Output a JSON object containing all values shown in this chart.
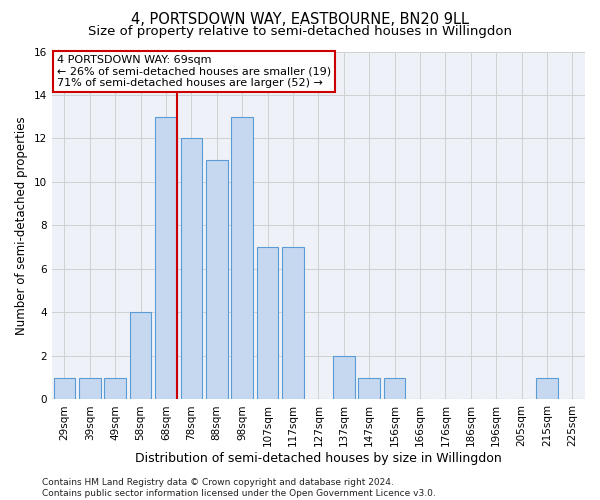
{
  "title": "4, PORTSDOWN WAY, EASTBOURNE, BN20 9LL",
  "subtitle": "Size of property relative to semi-detached houses in Willingdon",
  "xlabel": "Distribution of semi-detached houses by size in Willingdon",
  "ylabel": "Number of semi-detached properties",
  "categories": [
    "29sqm",
    "39sqm",
    "49sqm",
    "58sqm",
    "68sqm",
    "78sqm",
    "88sqm",
    "98sqm",
    "107sqm",
    "117sqm",
    "127sqm",
    "137sqm",
    "147sqm",
    "156sqm",
    "166sqm",
    "176sqm",
    "186sqm",
    "196sqm",
    "205sqm",
    "215sqm",
    "225sqm"
  ],
  "values": [
    1,
    1,
    1,
    4,
    13,
    12,
    11,
    13,
    7,
    7,
    0,
    2,
    1,
    1,
    0,
    0,
    0,
    0,
    0,
    1,
    0
  ],
  "bar_color": "#c5d8f0",
  "bar_edge_color": "#5b9bd5",
  "vline_bar_index": 4,
  "vline_color": "#cc0000",
  "annotation_line1": "4 PORTSDOWN WAY: 69sqm",
  "annotation_line2": "← 26% of semi-detached houses are smaller (19)",
  "annotation_line3": "71% of semi-detached houses are larger (52) →",
  "annotation_box_color": "#ffffff",
  "annotation_box_edge_color": "#cc0000",
  "ylim": [
    0,
    16
  ],
  "yticks": [
    0,
    2,
    4,
    6,
    8,
    10,
    12,
    14,
    16
  ],
  "grid_color": "#d0d0d0",
  "bg_color": "#eef2f8",
  "footnote": "Contains HM Land Registry data © Crown copyright and database right 2024.\nContains public sector information licensed under the Open Government Licence v3.0.",
  "title_fontsize": 10.5,
  "subtitle_fontsize": 9.5,
  "xlabel_fontsize": 9,
  "ylabel_fontsize": 8.5,
  "tick_fontsize": 7.5,
  "annotation_fontsize": 8,
  "footnote_fontsize": 6.5
}
